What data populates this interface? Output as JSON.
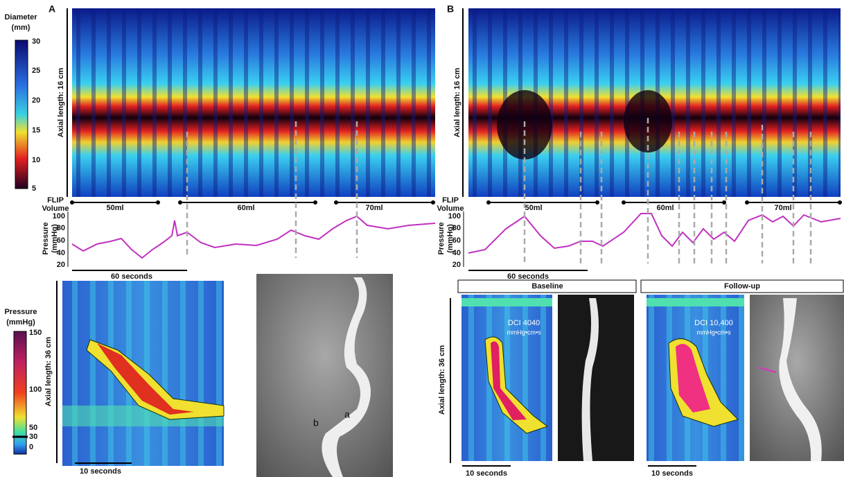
{
  "diameter_scale": {
    "title_lines": [
      "Diameter",
      "(mm)"
    ],
    "ticks": [
      30,
      25,
      20,
      15,
      10,
      5
    ]
  },
  "panel_a": {
    "label": "A",
    "axial_length": "Axial length: 16 cm",
    "flip_volume_lines": [
      "FLIP",
      "Volume"
    ],
    "volumes": [
      "50ml",
      "60ml",
      "70ml"
    ],
    "pressure_label_lines": [
      "Pressure",
      "(mmHg)"
    ],
    "pressure_ticks": [
      100,
      80,
      60,
      40,
      20
    ],
    "time_scale": "60 seconds"
  },
  "panel_b": {
    "label": "B",
    "axial_length": "Axial length: 16 cm",
    "flip_volume_lines": [
      "FLIP",
      "Volume"
    ],
    "volumes": [
      "50ml",
      "60ml",
      "70ml"
    ],
    "pressure_label_lines": [
      "Pressure",
      "(mmHg)"
    ],
    "pressure_ticks": [
      100,
      80,
      60,
      40,
      20
    ],
    "time_scale": "60 seconds"
  },
  "pressure_scale": {
    "title_lines": [
      "Pressure",
      "(mmHg)"
    ],
    "ticks": [
      150,
      100,
      50,
      30,
      0
    ]
  },
  "hrm_a": {
    "axial_length": "Axial length: 36 cm",
    "time_scale": "10 seconds",
    "xray_labels": [
      "b",
      "a"
    ]
  },
  "hrm_b": {
    "axial_length": "Axial length: 36 cm",
    "baseline": {
      "title": "Baseline",
      "dci": "DCI 4040",
      "unit": "mmHg•cm•s",
      "time_scale": "10 seconds"
    },
    "follow_up": {
      "title": "Follow-up",
      "dci": "DCI 10,400",
      "unit": "mmHg•cm•s",
      "time_scale": "10 seconds"
    }
  }
}
